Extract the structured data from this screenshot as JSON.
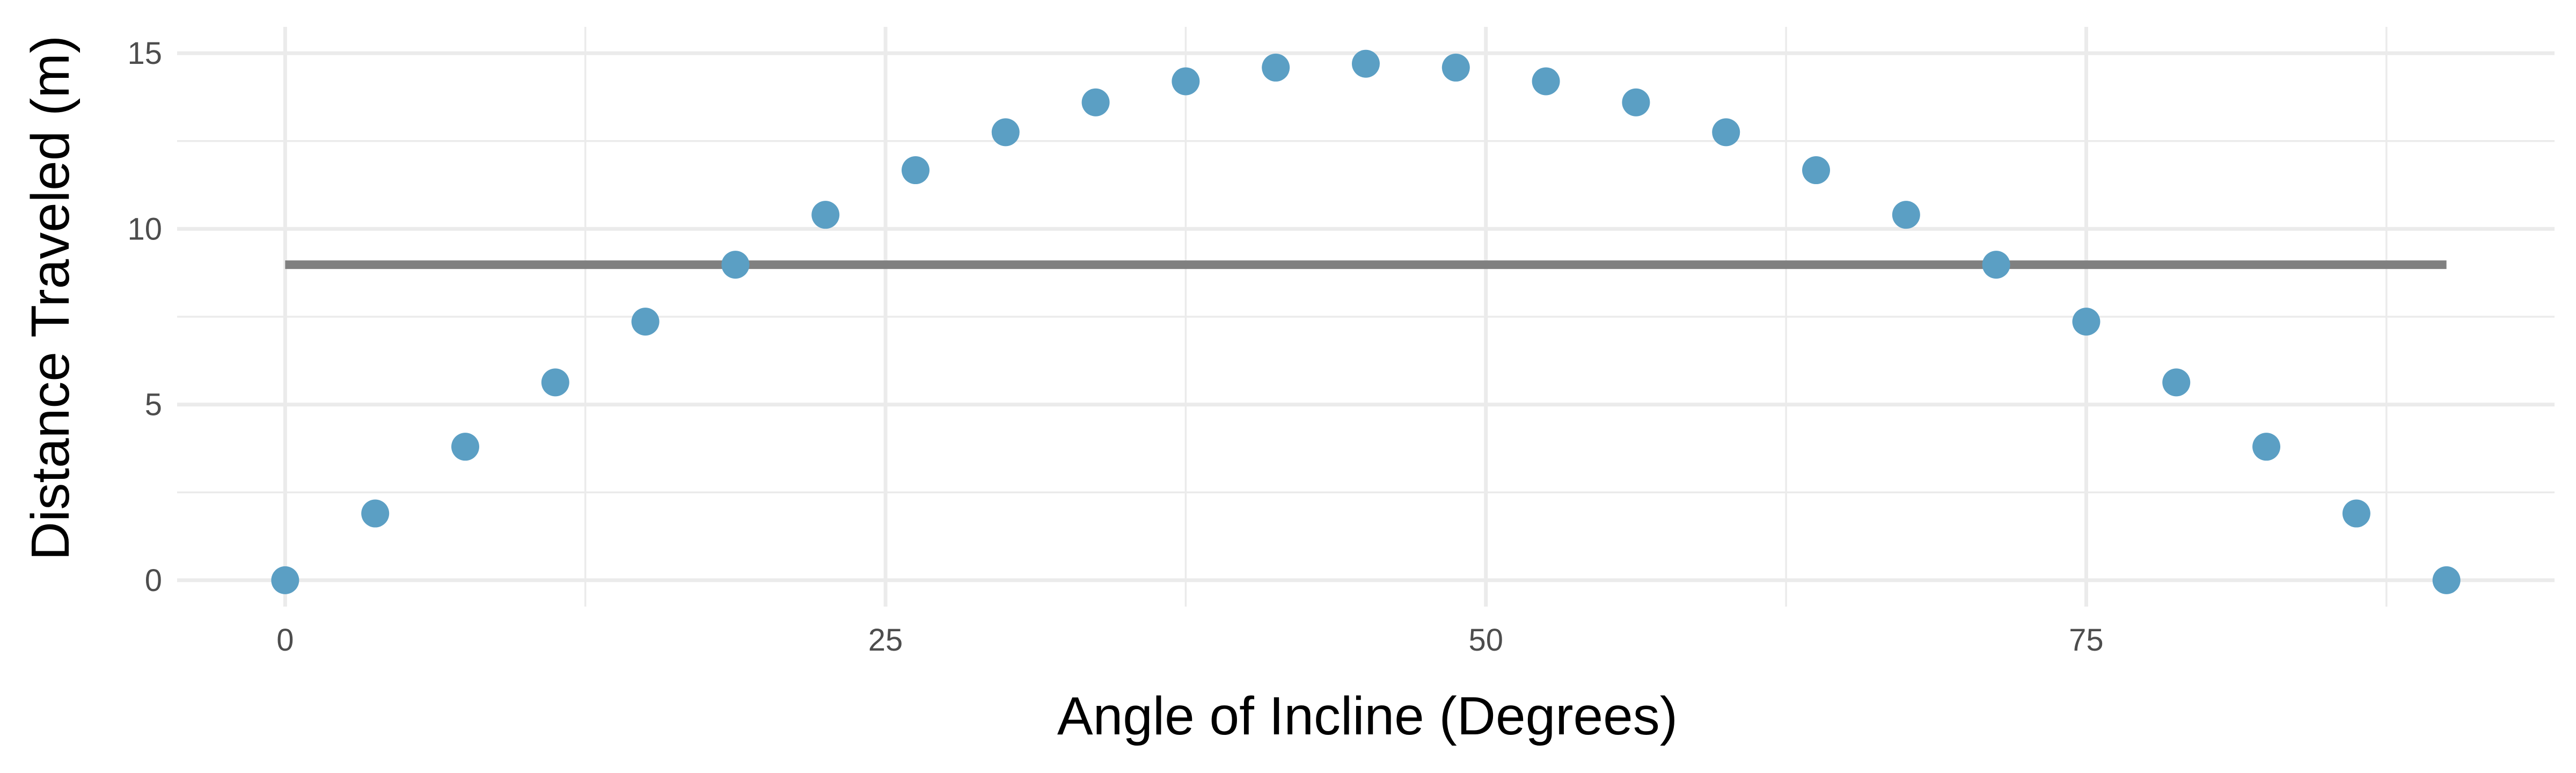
{
  "chart_data": {
    "type": "scatter",
    "title": "",
    "xlabel": "Angle of Incline (Degrees)",
    "ylabel": "Distance Traveled (m)",
    "xlim": [
      -4.5,
      94.5
    ],
    "ylim": [
      -0.75,
      15.75
    ],
    "x_ticks": [
      0,
      25,
      50,
      75
    ],
    "y_ticks": [
      0,
      5,
      10,
      15
    ],
    "grid": true,
    "legend": "none",
    "colors": {
      "points": "#5b9fc4",
      "fit_line": "#808080"
    },
    "series": [
      {
        "points": [
          {
            "x": 0,
            "y": 0
          },
          {
            "x": 3.75,
            "y": 1.9
          },
          {
            "x": 7.5,
            "y": 3.8
          },
          {
            "x": 11.25,
            "y": 5.63
          },
          {
            "x": 15,
            "y": 7.36
          },
          {
            "x": 18.75,
            "y": 8.98
          },
          {
            "x": 22.5,
            "y": 10.4
          },
          {
            "x": 26.25,
            "y": 11.67
          },
          {
            "x": 30,
            "y": 12.75
          },
          {
            "x": 33.75,
            "y": 13.6
          },
          {
            "x": 37.5,
            "y": 14.2
          },
          {
            "x": 41.25,
            "y": 14.59
          },
          {
            "x": 45,
            "y": 14.7
          },
          {
            "x": 48.75,
            "y": 14.59
          },
          {
            "x": 52.5,
            "y": 14.2
          },
          {
            "x": 56.25,
            "y": 13.6
          },
          {
            "x": 60,
            "y": 12.75
          },
          {
            "x": 63.75,
            "y": 11.67
          },
          {
            "x": 67.5,
            "y": 10.4
          },
          {
            "x": 71.25,
            "y": 8.98
          },
          {
            "x": 75,
            "y": 7.36
          },
          {
            "x": 78.75,
            "y": 5.63
          },
          {
            "x": 82.5,
            "y": 3.8
          },
          {
            "x": 86.25,
            "y": 1.9
          },
          {
            "x": 90,
            "y": 0
          }
        ]
      }
    ],
    "fit_line": {
      "x_start": 0,
      "x_end": 90,
      "y": 8.98
    }
  }
}
